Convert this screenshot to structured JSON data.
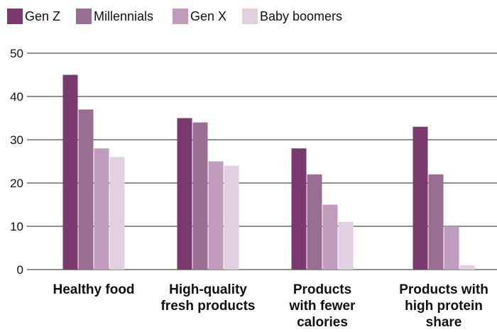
{
  "chart_data": {
    "type": "bar",
    "categories": [
      [
        "Healthy food"
      ],
      [
        "High-quality",
        "fresh products"
      ],
      [
        "Products",
        "with fewer",
        "calories"
      ],
      [
        "Products with",
        "high protein",
        "share"
      ]
    ],
    "series": [
      {
        "name": "Gen Z",
        "color": "#7a3a6e",
        "values": [
          45,
          35,
          28,
          33
        ]
      },
      {
        "name": "Millennials",
        "color": "#9a6e92",
        "values": [
          37,
          34,
          22,
          22
        ]
      },
      {
        "name": "Gen X",
        "color": "#bf9cbb",
        "values": [
          28,
          25,
          15,
          10
        ]
      },
      {
        "name": "Baby boomers",
        "color": "#e2d0e0",
        "values": [
          26,
          24,
          11,
          1
        ]
      }
    ],
    "yticks": [
      0,
      10,
      20,
      30,
      40,
      50
    ],
    "ylim": [
      0,
      50
    ],
    "grid": true,
    "legend_position": "top-left",
    "title": "",
    "xlabel": "",
    "ylabel": ""
  }
}
